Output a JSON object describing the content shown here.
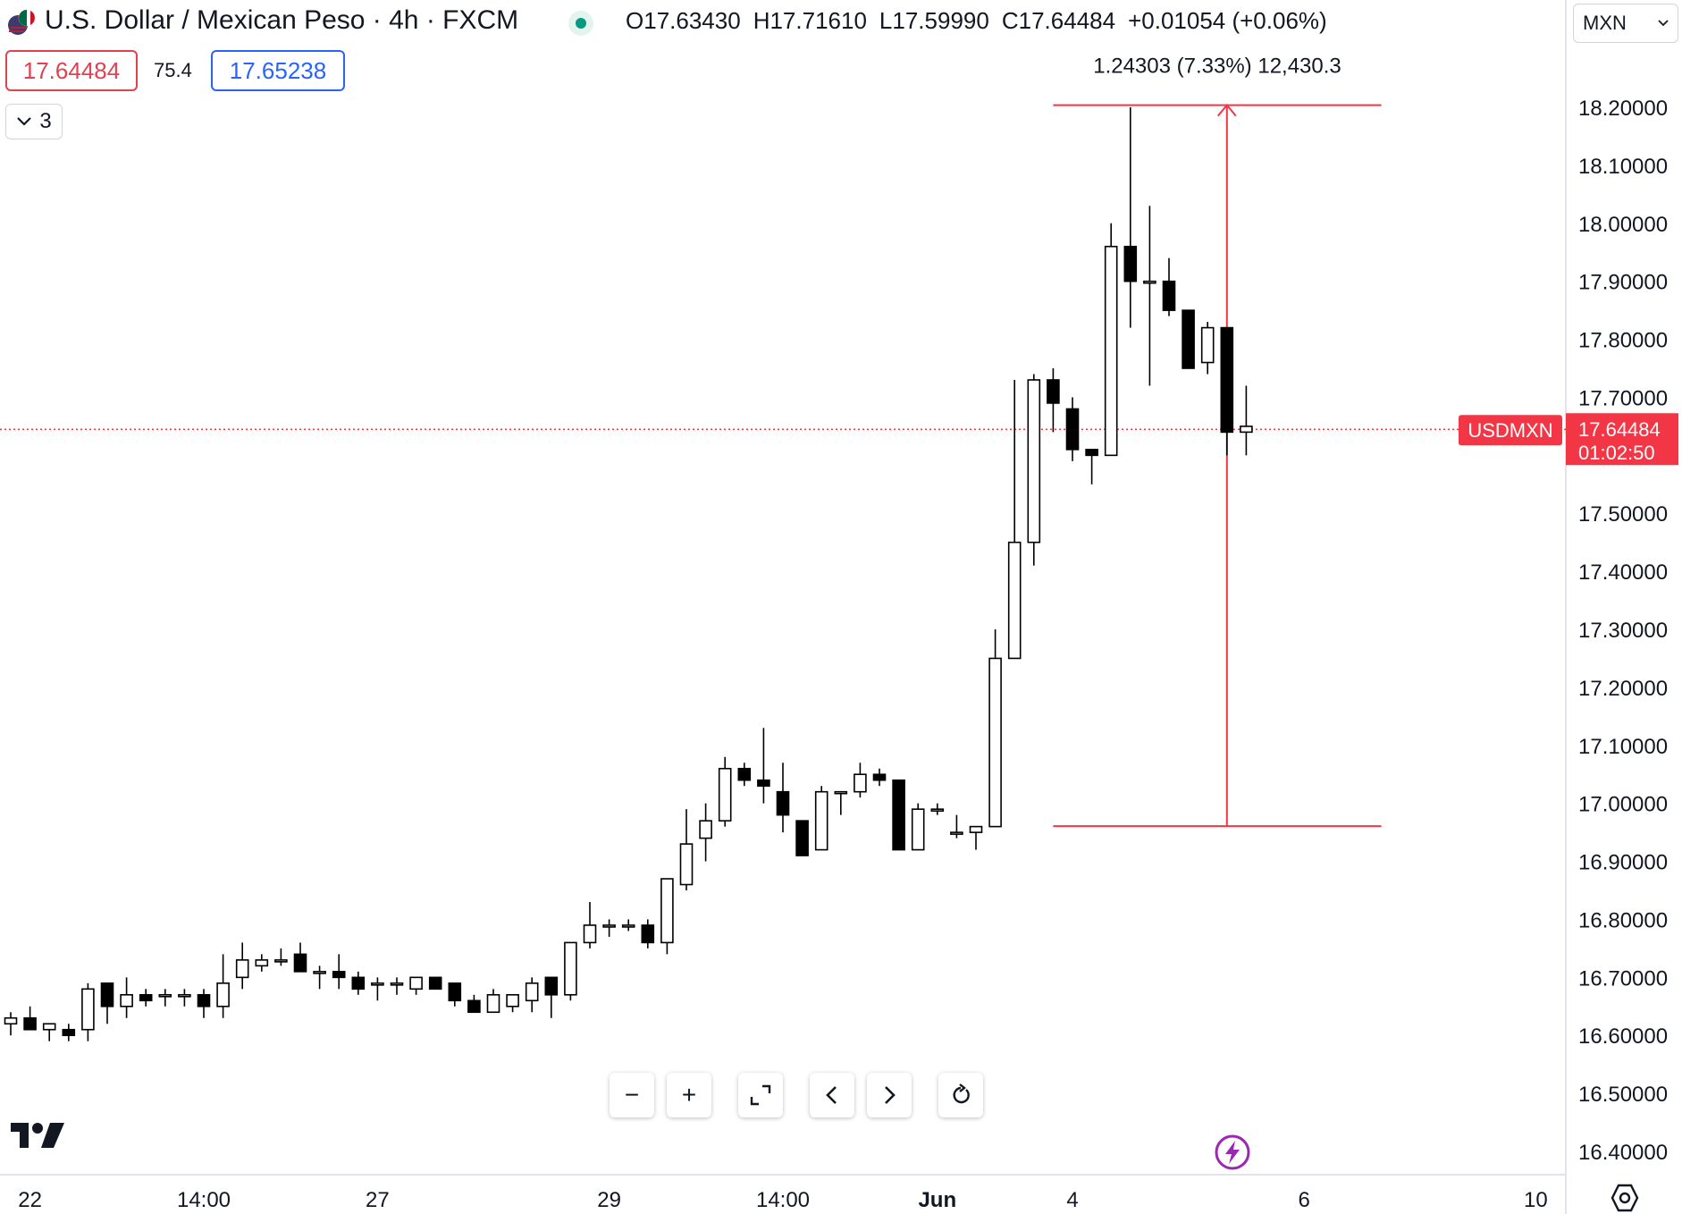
{
  "header": {
    "title": "U.S. Dollar / Mexican Peso · 4h · FXCM",
    "ohlc": [
      {
        "key": "O",
        "value": "17.63430"
      },
      {
        "key": "H",
        "value": "17.71610"
      },
      {
        "key": "L",
        "value": "17.59990"
      },
      {
        "key": "C",
        "value": "17.64484"
      }
    ],
    "change": "+0.01054 (+0.06%)",
    "sell_price": "17.64484",
    "spread": "75.4",
    "buy_price": "17.65238",
    "indicators_count": "3",
    "currency": "MXN"
  },
  "colors": {
    "accent_red": "#f23645",
    "buy_blue": "#2962ff",
    "status_green": "#089981"
  },
  "chart_data": {
    "type": "candlestick",
    "symbol_label": "USDMXN",
    "last_price": "17.64484",
    "countdown": "01:02:50",
    "ylim": [
      16.35,
      18.35
    ],
    "yticks": [
      "18.20000",
      "18.10000",
      "18.00000",
      "17.90000",
      "17.80000",
      "17.70000",
      "17.50000",
      "17.40000",
      "17.30000",
      "17.20000",
      "17.10000",
      "17.00000",
      "16.90000",
      "16.80000",
      "16.70000",
      "16.60000",
      "16.50000",
      "16.40000"
    ],
    "xticks": [
      {
        "label": "22",
        "bar": 1
      },
      {
        "label": "14:00",
        "bar": 10
      },
      {
        "label": "27",
        "bar": 19
      },
      {
        "label": "29",
        "bar": 31
      },
      {
        "label": "14:00",
        "bar": 40
      },
      {
        "label": "Jun",
        "bar": 48
      },
      {
        "label": "4",
        "bar": 55
      },
      {
        "label": "6",
        "bar": 67
      },
      {
        "label": "10",
        "bar": 79
      }
    ],
    "measure": {
      "label": "1.24303 (7.33%) 12,430.3",
      "from_price": 16.9607,
      "to_price": 18.2037,
      "from_bar": 54,
      "to_bar": 71,
      "arrow_bar": 63
    },
    "candles": [
      {
        "o": 16.62,
        "h": 16.64,
        "l": 16.6,
        "c": 16.63
      },
      {
        "o": 16.63,
        "h": 16.65,
        "l": 16.61,
        "c": 16.61
      },
      {
        "o": 16.61,
        "h": 16.62,
        "l": 16.59,
        "c": 16.62
      },
      {
        "o": 16.61,
        "h": 16.62,
        "l": 16.59,
        "c": 16.6
      },
      {
        "o": 16.61,
        "h": 16.69,
        "l": 16.59,
        "c": 16.68
      },
      {
        "o": 16.69,
        "h": 16.69,
        "l": 16.62,
        "c": 16.65
      },
      {
        "o": 16.65,
        "h": 16.7,
        "l": 16.63,
        "c": 16.67
      },
      {
        "o": 16.67,
        "h": 16.68,
        "l": 16.65,
        "c": 16.66
      },
      {
        "o": 16.67,
        "h": 16.68,
        "l": 16.65,
        "c": 16.67
      },
      {
        "o": 16.67,
        "h": 16.68,
        "l": 16.65,
        "c": 16.67
      },
      {
        "o": 16.67,
        "h": 16.68,
        "l": 16.63,
        "c": 16.65
      },
      {
        "o": 16.65,
        "h": 16.74,
        "l": 16.63,
        "c": 16.69
      },
      {
        "o": 16.7,
        "h": 16.76,
        "l": 16.68,
        "c": 16.73
      },
      {
        "o": 16.72,
        "h": 16.74,
        "l": 16.71,
        "c": 16.73
      },
      {
        "o": 16.73,
        "h": 16.75,
        "l": 16.72,
        "c": 16.73
      },
      {
        "o": 16.74,
        "h": 16.76,
        "l": 16.71,
        "c": 16.71
      },
      {
        "o": 16.71,
        "h": 16.72,
        "l": 16.68,
        "c": 16.71
      },
      {
        "o": 16.71,
        "h": 16.74,
        "l": 16.68,
        "c": 16.7
      },
      {
        "o": 16.7,
        "h": 16.71,
        "l": 16.67,
        "c": 16.68
      },
      {
        "o": 16.69,
        "h": 16.7,
        "l": 16.66,
        "c": 16.69
      },
      {
        "o": 16.69,
        "h": 16.7,
        "l": 16.67,
        "c": 16.69
      },
      {
        "o": 16.68,
        "h": 16.7,
        "l": 16.67,
        "c": 16.7
      },
      {
        "o": 16.7,
        "h": 16.7,
        "l": 16.68,
        "c": 16.68
      },
      {
        "o": 16.69,
        "h": 16.69,
        "l": 16.65,
        "c": 16.66
      },
      {
        "o": 16.66,
        "h": 16.67,
        "l": 16.64,
        "c": 16.64
      },
      {
        "o": 16.64,
        "h": 16.68,
        "l": 16.64,
        "c": 16.67
      },
      {
        "o": 16.65,
        "h": 16.67,
        "l": 16.64,
        "c": 16.67
      },
      {
        "o": 16.66,
        "h": 16.7,
        "l": 16.64,
        "c": 16.69
      },
      {
        "o": 16.7,
        "h": 16.7,
        "l": 16.63,
        "c": 16.67
      },
      {
        "o": 16.67,
        "h": 16.76,
        "l": 16.66,
        "c": 16.76
      },
      {
        "o": 16.76,
        "h": 16.83,
        "l": 16.75,
        "c": 16.79
      },
      {
        "o": 16.79,
        "h": 16.8,
        "l": 16.77,
        "c": 16.79
      },
      {
        "o": 16.79,
        "h": 16.8,
        "l": 16.78,
        "c": 16.79
      },
      {
        "o": 16.79,
        "h": 16.8,
        "l": 16.75,
        "c": 16.76
      },
      {
        "o": 16.76,
        "h": 16.87,
        "l": 16.74,
        "c": 16.87
      },
      {
        "o": 16.86,
        "h": 16.99,
        "l": 16.85,
        "c": 16.93
      },
      {
        "o": 16.94,
        "h": 17.0,
        "l": 16.9,
        "c": 16.97
      },
      {
        "o": 16.97,
        "h": 17.08,
        "l": 16.96,
        "c": 17.06
      },
      {
        "o": 17.06,
        "h": 17.07,
        "l": 17.03,
        "c": 17.04
      },
      {
        "o": 17.04,
        "h": 17.13,
        "l": 17.0,
        "c": 17.03
      },
      {
        "o": 17.02,
        "h": 17.07,
        "l": 16.95,
        "c": 16.98
      },
      {
        "o": 16.97,
        "h": 16.97,
        "l": 16.91,
        "c": 16.91
      },
      {
        "o": 16.92,
        "h": 17.03,
        "l": 16.92,
        "c": 17.02
      },
      {
        "o": 17.02,
        "h": 17.02,
        "l": 16.98,
        "c": 17.02
      },
      {
        "o": 17.02,
        "h": 17.07,
        "l": 17.01,
        "c": 17.05
      },
      {
        "o": 17.05,
        "h": 17.06,
        "l": 17.03,
        "c": 17.04
      },
      {
        "o": 17.04,
        "h": 17.04,
        "l": 16.92,
        "c": 16.92
      },
      {
        "o": 16.92,
        "h": 17.0,
        "l": 16.92,
        "c": 16.99
      },
      {
        "o": 16.99,
        "h": 17.0,
        "l": 16.98,
        "c": 16.99
      },
      {
        "o": 16.95,
        "h": 16.98,
        "l": 16.94,
        "c": 16.95
      },
      {
        "o": 16.95,
        "h": 16.96,
        "l": 16.92,
        "c": 16.96
      },
      {
        "o": 16.96,
        "h": 17.3,
        "l": 16.96,
        "c": 17.25
      },
      {
        "o": 17.25,
        "h": 17.73,
        "l": 17.25,
        "c": 17.45
      },
      {
        "o": 17.45,
        "h": 17.74,
        "l": 17.41,
        "c": 17.73
      },
      {
        "o": 17.73,
        "h": 17.75,
        "l": 17.64,
        "c": 17.69
      },
      {
        "o": 17.68,
        "h": 17.7,
        "l": 17.59,
        "c": 17.61
      },
      {
        "o": 17.61,
        "h": 17.61,
        "l": 17.55,
        "c": 17.6
      },
      {
        "o": 17.6,
        "h": 18.0,
        "l": 17.6,
        "c": 17.96
      },
      {
        "o": 17.96,
        "h": 18.2,
        "l": 17.82,
        "c": 17.9
      },
      {
        "o": 17.9,
        "h": 18.03,
        "l": 17.72,
        "c": 17.9
      },
      {
        "o": 17.9,
        "h": 17.94,
        "l": 17.84,
        "c": 17.85
      },
      {
        "o": 17.85,
        "h": 17.85,
        "l": 17.75,
        "c": 17.75
      },
      {
        "o": 17.76,
        "h": 17.83,
        "l": 17.74,
        "c": 17.82
      },
      {
        "o": 17.82,
        "h": 17.82,
        "l": 17.6,
        "c": 17.64
      },
      {
        "o": 17.64,
        "h": 17.72,
        "l": 17.6,
        "c": 17.65
      }
    ]
  },
  "toolbar": {
    "zoom_out": "−",
    "zoom_in": "+",
    "fullscreen_icon": "fullscreen-icon",
    "scroll_left_icon": "chevron-left-icon",
    "scroll_right_icon": "chevron-right-icon",
    "reset_icon": "reset-icon"
  }
}
